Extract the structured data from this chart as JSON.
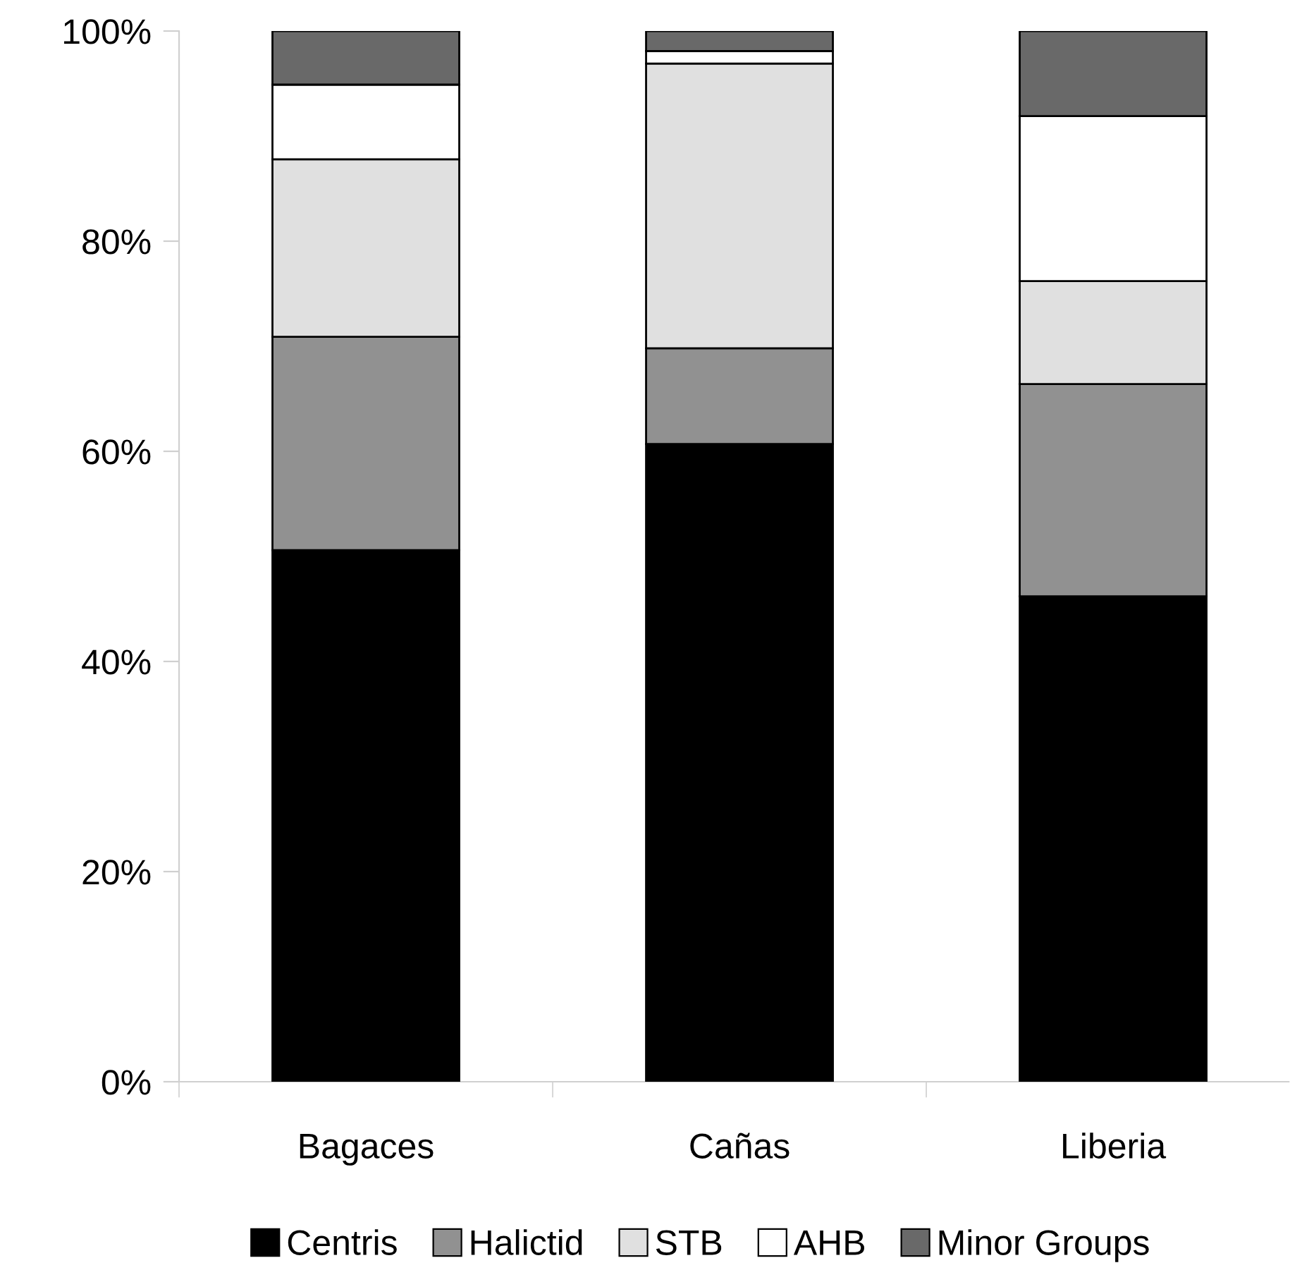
{
  "chart_data": {
    "type": "bar",
    "stacked": true,
    "categories": [
      "Bagaces",
      "Cañas",
      "Liberia"
    ],
    "series": [
      {
        "name": "Centris",
        "color": "#000000",
        "values": [
          50.6,
          60.7,
          46.2
        ]
      },
      {
        "name": "Halictid",
        "color": "#919191",
        "values": [
          20.3,
          9.1,
          20.2
        ]
      },
      {
        "name": "STB",
        "color": "#e0e0e0",
        "values": [
          16.9,
          27.1,
          9.8
        ]
      },
      {
        "name": "AHB",
        "color": "#ffffff",
        "values": [
          7.1,
          1.2,
          15.7
        ]
      },
      {
        "name": "Minor Groups",
        "color": "#696969",
        "values": [
          5.1,
          1.9,
          8.1
        ]
      }
    ],
    "ylim": [
      0,
      100
    ],
    "yticks": [
      {
        "value": 0,
        "label": "0%"
      },
      {
        "value": 20,
        "label": "20%"
      },
      {
        "value": 40,
        "label": "40%"
      },
      {
        "value": 60,
        "label": "60%"
      },
      {
        "value": 80,
        "label": "80%"
      },
      {
        "value": 100,
        "label": "100%"
      }
    ],
    "grid": false,
    "legend": "bottom"
  }
}
